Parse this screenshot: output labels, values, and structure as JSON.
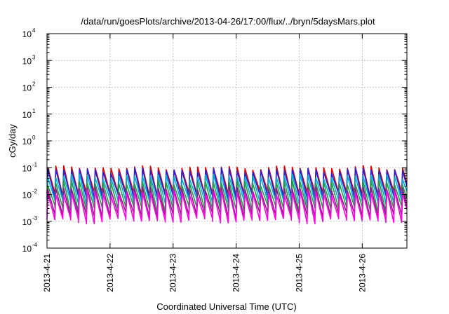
{
  "chart_data": {
    "type": "line",
    "title": "/data/run/goesPlots/archive/2013-04-26/17:00/flux/../bryn/5daysMars.plot",
    "xlabel": "Coordinated Universal Time (UTC)",
    "ylabel": "cGy/day",
    "yscale": "log",
    "ylim": [
      0.0001,
      10000
    ],
    "xlim": [
      "2013-04-21 00:00",
      "2013-04-26 17:00"
    ],
    "grid": true,
    "legend": "none",
    "x_ticks": [
      "2013-4-21",
      "2013-4-22",
      "2013-4-23",
      "2013-4-24",
      "2013-4-25",
      "2013-4-26"
    ],
    "y_ticks": [
      {
        "base": "10",
        "exp": "-4"
      },
      {
        "base": "10",
        "exp": "-3"
      },
      {
        "base": "10",
        "exp": "-2"
      },
      {
        "base": "10",
        "exp": "-1"
      },
      {
        "base": "10",
        "exp": "0"
      },
      {
        "base": "10",
        "exp": "1"
      },
      {
        "base": "10",
        "exp": "2"
      },
      {
        "base": "10",
        "exp": "3"
      },
      {
        "base": "10",
        "exp": "4"
      }
    ],
    "period_hours": 3,
    "series": [
      {
        "color": "#e00000",
        "peak": [
          0.08,
          0.12
        ],
        "trough": [
          0.008,
          0.014
        ]
      },
      {
        "color": "#2222dd",
        "peak": [
          0.06,
          0.1
        ],
        "trough": [
          0.006,
          0.011
        ]
      },
      {
        "color": "#00b0d8",
        "peak": [
          0.035,
          0.06
        ],
        "trough": [
          0.004,
          0.007
        ]
      },
      {
        "color": "#20a040",
        "peak": [
          0.02,
          0.035
        ],
        "trough": [
          0.002,
          0.004
        ]
      },
      {
        "color": "#8a1a8a",
        "peak": [
          0.012,
          0.02
        ],
        "trough": [
          0.0012,
          0.0022
        ]
      },
      {
        "color": "#ff00e0",
        "peak": [
          0.008,
          0.015
        ],
        "trough": [
          0.0008,
          0.0014
        ]
      }
    ]
  }
}
